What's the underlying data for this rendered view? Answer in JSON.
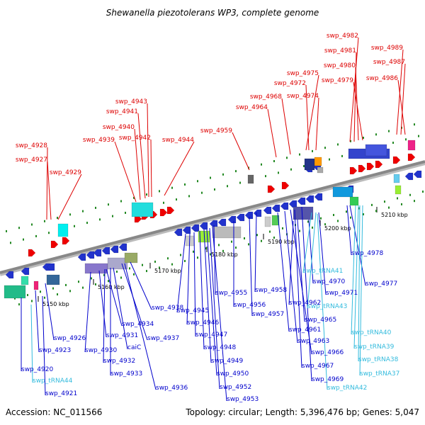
{
  "title": "Shewanella piezotolerans WP3, complete genome",
  "footer": {
    "accession": "Accession: NC_011566",
    "topology": "Topology: circular; Length: 5,396,476 bp; Genes: 5,047"
  },
  "colors": {
    "upper_labels": "#dd0000",
    "lower_labels": "#0000cc",
    "trna_labels": "#33bbdd",
    "backbone": "#888888",
    "tick": "#228822"
  },
  "ticks": [
    "5150 kbp",
    "5160 kbp",
    "5170 kbp",
    "5180 kbp",
    "5190 kbp",
    "5200 kbp",
    "5210 kbp"
  ],
  "upper_labels": [
    "swp_4928",
    "swp_4927",
    "swp_4929",
    "swp_4939",
    "swp_4940",
    "swp_4941",
    "swp_4943",
    "swp_4942",
    "swp_4944",
    "swp_4959",
    "swp_4964",
    "swp_4968",
    "swp_4975",
    "swp_4972",
    "swp_4974",
    "swp_4982",
    "swp_4981",
    "swp_4980",
    "swp_4979",
    "swp_4989",
    "swp_4987",
    "swp_4986"
  ],
  "lower_labels": [
    "swp_4978",
    "swp_4977",
    "swp_4971",
    "swp_4970",
    "swp_4962",
    "swp_4965",
    "swp_4958",
    "swp_4956",
    "swp_4955",
    "swp_4957",
    "swp_4961",
    "swp_4963",
    "swp_4966",
    "swp_4967",
    "swp_4969",
    "swp_4945",
    "swp_4946",
    "swp_4947",
    "swp_4948",
    "swp_4949",
    "swp_4950",
    "swp_4952",
    "swp_4953",
    "swp_4938",
    "swp_4937",
    "swp_4934",
    "swp_4931",
    "caiC",
    "swp_4930",
    "swp_4932",
    "swp_4933",
    "swp_4936",
    "swp_4926",
    "swp_4923",
    "swp_4920",
    "swp_4921"
  ],
  "trna_labels": [
    "swp_tRNA41",
    "swp_tRNA43",
    "swp_tRNA40",
    "swp_tRNA39",
    "swp_tRNA38",
    "swp_tRNA37",
    "swp_tRNA42",
    "swp_tRNA44"
  ]
}
